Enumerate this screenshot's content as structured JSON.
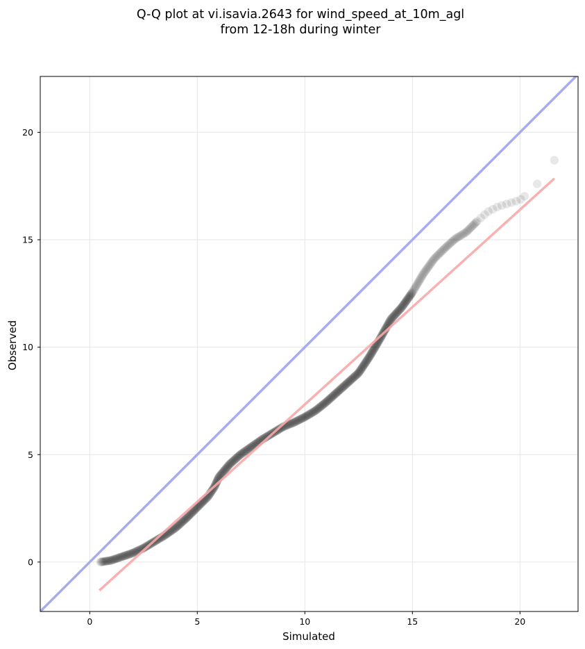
{
  "chart_data": {
    "type": "scatter",
    "title_line1": "Q-Q plot at vi.isavia.2643 for wind_speed_at_10m_agl",
    "title_line2": "from 12-18h during winter",
    "xlabel": "Simulated",
    "ylabel": "Observed",
    "xlim": [
      -2.3,
      22.7
    ],
    "ylim": [
      -2.3,
      22.6
    ],
    "xticks": [
      0,
      5,
      10,
      15,
      20
    ],
    "yticks": [
      0,
      5,
      10,
      15,
      20
    ],
    "grid": true,
    "reference_line": {
      "name": "y = x",
      "color": "#a9abf0"
    },
    "fit_line": {
      "color": "#f7a8a8",
      "x": [
        0.45,
        21.6
      ],
      "y": [
        -1.32,
        17.85
      ]
    },
    "marker_color": "#000000",
    "qq_curve": [
      [
        0.5,
        0.0
      ],
      [
        1.0,
        0.08
      ],
      [
        1.5,
        0.25
      ],
      [
        2.0,
        0.42
      ],
      [
        2.5,
        0.65
      ],
      [
        3.0,
        0.95
      ],
      [
        3.5,
        1.25
      ],
      [
        4.0,
        1.6
      ],
      [
        4.5,
        2.05
      ],
      [
        5.0,
        2.55
      ],
      [
        5.5,
        3.05
      ],
      [
        5.8,
        3.5
      ],
      [
        6.0,
        3.95
      ],
      [
        6.5,
        4.55
      ],
      [
        7.0,
        5.0
      ],
      [
        7.5,
        5.35
      ],
      [
        8.0,
        5.7
      ],
      [
        8.5,
        6.0
      ],
      [
        9.0,
        6.3
      ],
      [
        9.5,
        6.5
      ],
      [
        10.0,
        6.75
      ],
      [
        10.5,
        7.05
      ],
      [
        11.0,
        7.45
      ],
      [
        11.5,
        7.9
      ],
      [
        12.0,
        8.35
      ],
      [
        12.5,
        8.8
      ],
      [
        13.0,
        9.55
      ],
      [
        13.5,
        10.4
      ],
      [
        14.0,
        11.3
      ],
      [
        14.5,
        11.85
      ],
      [
        15.0,
        12.55
      ],
      [
        15.5,
        13.4
      ],
      [
        16.0,
        14.1
      ],
      [
        16.5,
        14.6
      ],
      [
        17.0,
        15.05
      ],
      [
        17.5,
        15.35
      ],
      [
        18.0,
        15.85
      ],
      [
        18.5,
        16.3
      ],
      [
        19.0,
        16.55
      ],
      [
        19.5,
        16.7
      ],
      [
        20.0,
        16.85
      ],
      [
        20.3,
        17.1
      ]
    ],
    "tail_points": [
      [
        20.8,
        17.6
      ],
      [
        21.6,
        18.7
      ]
    ]
  }
}
